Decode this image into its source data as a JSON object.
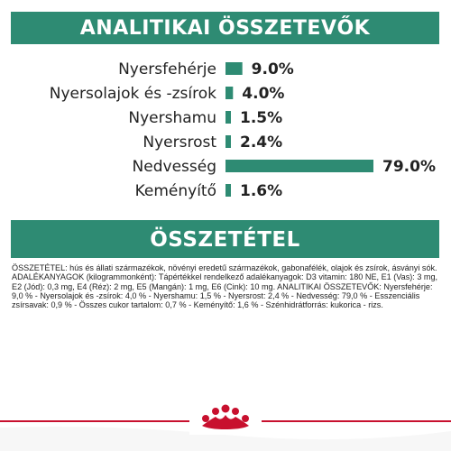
{
  "header_analytic": "ANALITIKAI ÖSSZETEVŐK",
  "header_composition": "ÖSSZETÉTEL",
  "colors": {
    "brand_green": "#2e8b73",
    "brand_red": "#c8102e"
  },
  "chart_data": {
    "type": "bar",
    "orientation": "horizontal",
    "categories": [
      "Nyersfehérje",
      "Nyersolajok és -zsírok",
      "Nyershamu",
      "Nyersrost",
      "Nedvesség",
      "Keményítő"
    ],
    "values": [
      9.0,
      4.0,
      1.5,
      2.4,
      79.0,
      1.6
    ],
    "value_labels": [
      "9.0%",
      "4.0%",
      "1.5%",
      "2.4%",
      "79.0%",
      "1.6%"
    ],
    "xlim": [
      0,
      79.0
    ],
    "grid": false,
    "bar_color": "#2e8b73"
  },
  "composition_text": "ÖSSZETÉTEL: hús és állati származékok, növényi eredetű származékok, gabonafélék, olajok és zsírok, ásványi sók. ADALÉKANYAGOK (kilogrammonként): Tápértékkel rendelkező adalékanyagok: D3 vitamin: 180 NE, E1 (Vas): 3 mg, E2 (Jód): 0,3 mg, E4 (Réz): 2 mg, E5 (Mangán): 1 mg, E6 (Cink): 10 mg. ANALITIKAI ÖSSZETEVŐK: Nyersfehérje: 9,0 % - Nyersolajok és -zsírok: 4,0 % - Nyershamu: 1,5 % - Nyersrost: 2,4 % - Nedvesség: 79,0 % - Esszenciális zsírsavak: 0,9 % - Összes cukor tartalom: 0,7 % - Keményítő: 1,6 % - Szénhidrátforrás: kukorica - rizs."
}
